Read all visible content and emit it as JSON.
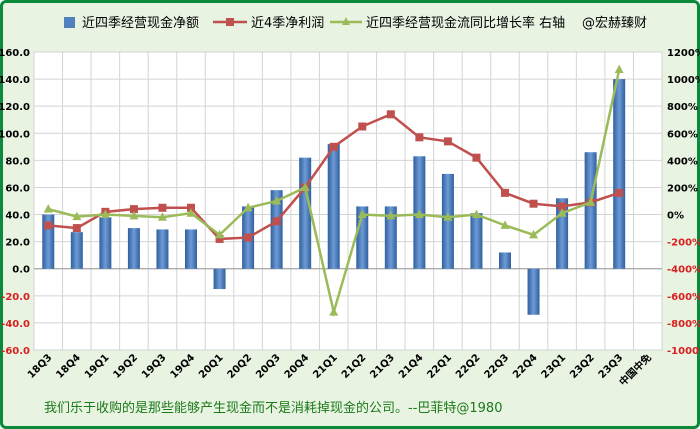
{
  "chart_data": {
    "type": "bar",
    "categories": [
      "18Q3",
      "18Q4",
      "19Q1",
      "19Q2",
      "19Q3",
      "19Q4",
      "20Q1",
      "20Q2",
      "20Q3",
      "20Q4",
      "21Q1",
      "21Q2",
      "21Q3",
      "21Q4",
      "22Q1",
      "22Q2",
      "22Q3",
      "22Q4",
      "23Q1",
      "23Q2",
      "23Q3"
    ],
    "extra_x_label": "中国中免",
    "series": [
      {
        "name": "近四季经营现金净额",
        "kind": "bar",
        "axis": "left",
        "color": "#4f81bd",
        "values": [
          40,
          27,
          38,
          30,
          29,
          29,
          -15,
          46,
          58,
          82,
          92,
          46,
          46,
          83,
          70,
          41,
          12,
          -34,
          52,
          86,
          140
        ]
      },
      {
        "name": "近4季净利润",
        "kind": "line",
        "axis": "left",
        "color": "#c0504d",
        "marker": "square",
        "values": [
          32,
          30,
          42,
          44,
          45,
          45,
          22,
          23,
          35,
          60,
          90,
          105,
          114,
          97,
          94,
          82,
          56,
          48,
          46,
          49,
          56
        ]
      },
      {
        "name": "近四季经营现金流同比增长率 右轴",
        "kind": "line",
        "axis": "right",
        "color": "#9bbb59",
        "marker": "triangle",
        "values": [
          40,
          -15,
          0,
          -10,
          -20,
          10,
          -150,
          50,
          100,
          200,
          -720,
          0,
          -10,
          0,
          -20,
          0,
          -80,
          -150,
          10,
          90,
          1070
        ]
      }
    ],
    "y_left": {
      "min": -60,
      "max": 160,
      "step": 20,
      "tick_labels": [
        "-60.0",
        "-40.0",
        "-20.0",
        "0.0",
        "20.0",
        "40.0",
        "60.0",
        "80.0",
        "100.0",
        "120.0",
        "140.0",
        "160.0"
      ]
    },
    "y_right": {
      "min": -1000,
      "max": 1200,
      "step": 200,
      "tick_labels": [
        "-1000%",
        "-800%",
        "-600%",
        "-400%",
        "-200%",
        "0%",
        "200%",
        "400%",
        "600%",
        "800%",
        "1000%",
        "1200%"
      ]
    },
    "grid": true,
    "legend_position": "top",
    "watermark": "@宏赫臻财",
    "footer_quote": "我们乐于收购的是那些能够产生现金而不是消耗掉现金的公司。--巴菲特@1980"
  }
}
